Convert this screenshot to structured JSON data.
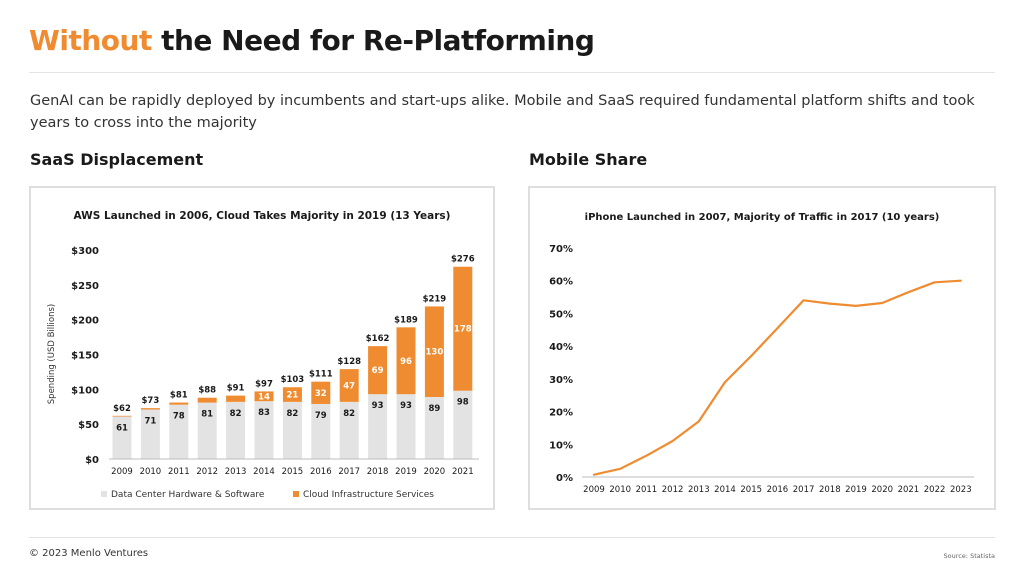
{
  "header": {
    "title_accent": "Without",
    "title_rest": "the Need for Re-Platforming",
    "subtitle": "GenAI can be rapidly deployed by incumbents and start-ups alike. Mobile and SaaS required fundamental platform shifts and took years to cross into the majority"
  },
  "left_section": {
    "title": "SaaS Displacement"
  },
  "right_section": {
    "title": "Mobile Share"
  },
  "footer": {
    "copyright": "© 2023 Menlo Ventures",
    "source": "Source: Statista"
  },
  "colors": {
    "accent": "#ef8c31",
    "gray_bar": "#e3e3e3",
    "text": "#1a1a1a"
  },
  "chart_data": [
    {
      "type": "bar",
      "stacked": true,
      "title": "AWS Launched in 2006, Cloud Takes Majority in 2019 (13 Years)",
      "ylabel": "Spending (USD Billions)",
      "xlabel": "",
      "ylim": [
        0,
        300
      ],
      "yticks": [
        "$0",
        "$50",
        "$100",
        "$150",
        "$200",
        "$250",
        "$300"
      ],
      "grid": false,
      "legend_placement": "bottom",
      "categories": [
        "2009",
        "2010",
        "2011",
        "2012",
        "2013",
        "2014",
        "2015",
        "2016",
        "2017",
        "2018",
        "2019",
        "2020",
        "2021"
      ],
      "totals": [
        "$62",
        "$73",
        "$81",
        "$88",
        "$91",
        "$97",
        "$103",
        "$111",
        "$128",
        "$162",
        "$189",
        "$219",
        "$276"
      ],
      "series": [
        {
          "name": "Data Center Hardware & Software",
          "color": "#e3e3e3",
          "values": [
            61,
            71,
            78,
            81,
            82,
            83,
            82,
            79,
            82,
            93,
            93,
            89,
            98
          ]
        },
        {
          "name": "Cloud Infrastructure Services",
          "color": "#ef8c31",
          "values": [
            1,
            2,
            3,
            7,
            9,
            14,
            21,
            32,
            47,
            69,
            96,
            130,
            178
          ],
          "labeled_from_index": 5
        }
      ]
    },
    {
      "type": "line",
      "title": "iPhone Launched in 2007, Majority of Traffic in 2017 (10 years)",
      "xlabel": "",
      "ylabel": "",
      "ylim": [
        0,
        70
      ],
      "yticks": [
        "0%",
        "10%",
        "20%",
        "30%",
        "40%",
        "50%",
        "60%",
        "70%"
      ],
      "grid": false,
      "x": [
        "2009",
        "2010",
        "2011",
        "2012",
        "2013",
        "2014",
        "2015",
        "2016",
        "2017",
        "2018",
        "2019",
        "2020",
        "2021",
        "2022",
        "2023"
      ],
      "series": [
        {
          "color": "#ef8c31",
          "values": [
            0.7,
            2.5,
            6.5,
            11,
            17,
            29,
            37,
            45.5,
            54,
            53,
            52.3,
            53.2,
            56.5,
            59.5,
            60
          ]
        }
      ]
    }
  ]
}
